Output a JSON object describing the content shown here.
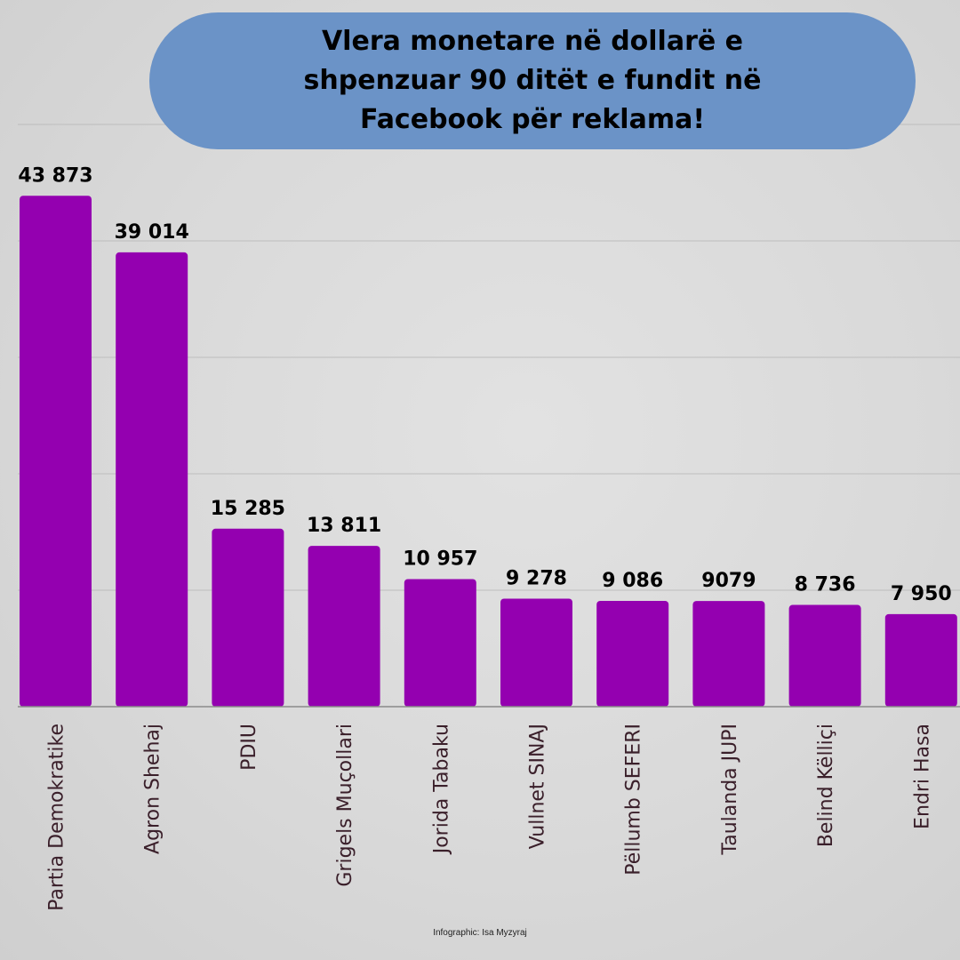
{
  "title": "Vlera monetare në dollarë e shpenzuar 90 ditët e fundit në Facebook për reklama!",
  "credit": "Infographic: Isa Myzyraj",
  "colors": {
    "bar": "#9400b0",
    "title_bg": "#6b93c7",
    "grid": "#bdbdbd",
    "axis": "#8a8a8a"
  },
  "chart_data": {
    "type": "bar",
    "categories": [
      "Partia Demokratike",
      "Agron Shehaj",
      "PDIU",
      "Grigels Muçollari",
      "Jorida Tabaku",
      "Vullnet SINAJ",
      "Pëllumb SEFERI",
      "Taulanda JUPI",
      "Belind Këlliçi",
      "Endri Hasa"
    ],
    "values": [
      43873,
      39014,
      15285,
      13811,
      10957,
      9278,
      9086,
      9079,
      8736,
      7950
    ],
    "value_labels": [
      "43 873",
      "39 014",
      "15 285",
      "13 811",
      "10 957",
      "9 278",
      "9 086",
      "9079",
      "8 736",
      "7 950"
    ],
    "title": "Vlera monetare në dollarë e shpenzuar 90 ditët e fundit në Facebook për reklama!",
    "xlabel": "",
    "ylabel": "",
    "ylim": [
      0,
      50000
    ],
    "grid": true,
    "legend": "none"
  }
}
